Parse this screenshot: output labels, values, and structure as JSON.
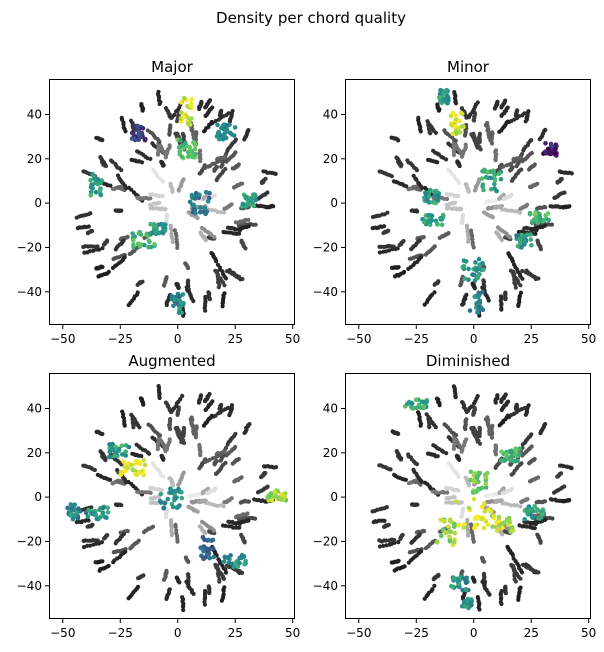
{
  "figure": {
    "title": "Density per chord quality"
  },
  "chart_data": [
    {
      "type": "scatter",
      "title": "Major",
      "xlim": [
        -56,
        51
      ],
      "ylim": [
        -55,
        56
      ],
      "xticks": [
        -50,
        -25,
        0,
        25,
        50
      ],
      "yticks": [
        -40,
        -20,
        0,
        20,
        40
      ],
      "grid": false,
      "colormap": "viridis over greyscale background",
      "hot_clusters": [
        {
          "x": [
            1,
            6
          ],
          "y": [
            35,
            48
          ],
          "density": 0.95
        },
        {
          "x": [
            0,
            8
          ],
          "y": [
            20,
            29
          ],
          "density": 0.7
        },
        {
          "x": [
            -38,
            -33
          ],
          "y": [
            3,
            14
          ],
          "density": 0.55
        },
        {
          "x": [
            -20,
            -10
          ],
          "y": [
            -20,
            -13
          ],
          "density": 0.65
        },
        {
          "x": [
            -12,
            -5
          ],
          "y": [
            -14,
            -9
          ],
          "density": 0.55
        },
        {
          "x": [
            17,
            25
          ],
          "y": [
            28,
            36
          ],
          "density": 0.5
        },
        {
          "x": [
            28,
            34
          ],
          "y": [
            -2,
            4
          ],
          "density": 0.55
        },
        {
          "x": [
            -3,
            3
          ],
          "y": [
            -50,
            -41
          ],
          "density": 0.45
        },
        {
          "x": [
            5,
            14
          ],
          "y": [
            -5,
            5
          ],
          "density": 0.4
        },
        {
          "x": [
            -20,
            -14
          ],
          "y": [
            28,
            35
          ],
          "density": 0.2
        }
      ]
    },
    {
      "type": "scatter",
      "title": "Minor",
      "xlim": [
        -56,
        51
      ],
      "ylim": [
        -55,
        56
      ],
      "xticks": [
        -50,
        -25,
        0,
        25,
        50
      ],
      "yticks": [
        -40,
        -20,
        0,
        20,
        40
      ],
      "grid": false,
      "colormap": "viridis over greyscale background",
      "hot_clusters": [
        {
          "x": [
            -10,
            -3
          ],
          "y": [
            31,
            41
          ],
          "density": 0.95
        },
        {
          "x": [
            -15,
            -11
          ],
          "y": [
            45,
            51
          ],
          "density": 0.55
        },
        {
          "x": [
            24,
            34
          ],
          "y": [
            -9,
            -4
          ],
          "density": 0.7
        },
        {
          "x": [
            -23,
            -13
          ],
          "y": [
            -10,
            -5
          ],
          "density": 0.6
        },
        {
          "x": [
            -5,
            5
          ],
          "y": [
            -35,
            -25
          ],
          "density": 0.55
        },
        {
          "x": [
            3,
            12
          ],
          "y": [
            5,
            15
          ],
          "density": 0.6
        },
        {
          "x": [
            -22,
            -15
          ],
          "y": [
            0,
            6
          ],
          "density": 0.55
        },
        {
          "x": [
            18,
            26
          ],
          "y": [
            -20,
            -14
          ],
          "density": 0.5
        },
        {
          "x": [
            -2,
            4
          ],
          "y": [
            -50,
            -40
          ],
          "density": 0.45
        },
        {
          "x": [
            30,
            36
          ],
          "y": [
            21,
            27
          ],
          "density": 0.1
        }
      ]
    },
    {
      "type": "scatter",
      "title": "Augmented",
      "xlim": [
        -56,
        51
      ],
      "ylim": [
        -55,
        56
      ],
      "xticks": [
        -50,
        -25,
        0,
        25,
        50
      ],
      "yticks": [
        -40,
        -20,
        0,
        20,
        40
      ],
      "grid": false,
      "colormap": "viridis over greyscale background",
      "hot_clusters": [
        {
          "x": [
            -25,
            -14
          ],
          "y": [
            10,
            17
          ],
          "density": 0.95
        },
        {
          "x": [
            38,
            48
          ],
          "y": [
            -2,
            3
          ],
          "density": 0.85
        },
        {
          "x": [
            -40,
            -30
          ],
          "y": [
            -10,
            -4
          ],
          "density": 0.5
        },
        {
          "x": [
            -8,
            2
          ],
          "y": [
            -6,
            4
          ],
          "density": 0.5
        },
        {
          "x": [
            20,
            30
          ],
          "y": [
            -32,
            -26
          ],
          "density": 0.5
        },
        {
          "x": [
            -30,
            -20
          ],
          "y": [
            18,
            24
          ],
          "density": 0.55
        },
        {
          "x": [
            -48,
            -42
          ],
          "y": [
            -10,
            -3
          ],
          "density": 0.45
        },
        {
          "x": [
            10,
            16
          ],
          "y": [
            -28,
            -18
          ],
          "density": 0.3
        }
      ]
    },
    {
      "type": "scatter",
      "title": "Diminished",
      "xlim": [
        -56,
        51
      ],
      "ylim": [
        -55,
        56
      ],
      "xticks": [
        -50,
        -25,
        0,
        25,
        50
      ],
      "yticks": [
        -40,
        -20,
        0,
        20,
        40
      ],
      "grid": false,
      "colormap": "viridis over greyscale background",
      "hot_clusters": [
        {
          "x": [
            -8,
            8
          ],
          "y": [
            -14,
            0
          ],
          "density": 1.0
        },
        {
          "x": [
            8,
            18
          ],
          "y": [
            -16,
            -8
          ],
          "density": 0.9
        },
        {
          "x": [
            -16,
            -8
          ],
          "y": [
            -22,
            -10
          ],
          "density": 0.85
        },
        {
          "x": [
            -2,
            6
          ],
          "y": [
            2,
            12
          ],
          "density": 0.75
        },
        {
          "x": [
            -30,
            -20
          ],
          "y": [
            40,
            44
          ],
          "density": 0.6
        },
        {
          "x": [
            12,
            20
          ],
          "y": [
            16,
            22
          ],
          "density": 0.65
        },
        {
          "x": [
            -10,
            -2
          ],
          "y": [
            -42,
            -36
          ],
          "density": 0.5
        },
        {
          "x": [
            22,
            32
          ],
          "y": [
            -10,
            -4
          ],
          "density": 0.55
        },
        {
          "x": [
            -5,
            0
          ],
          "y": [
            -50,
            -46
          ],
          "density": 0.5
        }
      ]
    }
  ],
  "colors": {
    "viridis_low": "#440154",
    "viridis_mid": "#21918c",
    "viridis_high": "#fde725",
    "background_dark": "#1a1a1a",
    "background_light": "#f2f2f2"
  }
}
